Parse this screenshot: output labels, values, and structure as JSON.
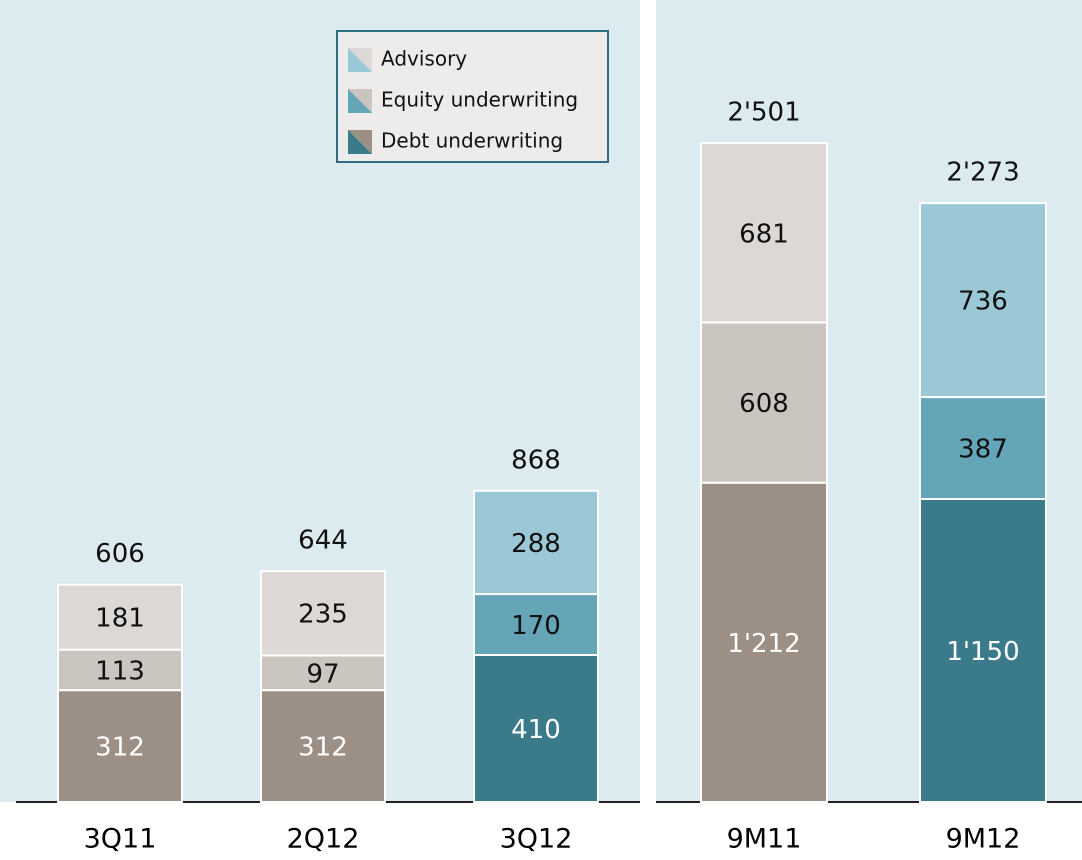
{
  "chart_data": [
    {
      "type": "stacked_bar",
      "categories": [
        "3Q11",
        "2Q12",
        "3Q12"
      ],
      "ylim": [
        0,
        2237
      ],
      "current": [
        false,
        false,
        true
      ],
      "legend": "top-right",
      "series": [
        {
          "name": "Debt underwriting",
          "color": "#3b7a8b",
          "prior_color": "#9c8f86",
          "values": [
            312,
            312,
            410
          ]
        },
        {
          "name": "Equity underwriting",
          "color": "#64a6b8",
          "prior_color": "#cbc5c0",
          "values": [
            113,
            97,
            170
          ]
        },
        {
          "name": "Advisory",
          "color": "#9bc8d6",
          "prior_color": "#dcd8d5",
          "values": [
            181,
            235,
            288
          ]
        }
      ],
      "totals": [
        606,
        644,
        868
      ]
    },
    {
      "type": "stacked_bar",
      "categories": [
        "9M11",
        "9M12"
      ],
      "ylim": [
        0,
        3044
      ],
      "current": [
        false,
        true
      ],
      "series": [
        {
          "name": "Debt underwriting",
          "color": "#3b7a8b",
          "prior_color": "#9c8f86",
          "values": [
            1212,
            1150
          ],
          "value_labels": [
            "1'212",
            "1'150"
          ]
        },
        {
          "name": "Equity underwriting",
          "color": "#64a6b8",
          "prior_color": "#cbc5c0",
          "values": [
            608,
            387
          ]
        },
        {
          "name": "Advisory",
          "color": "#9bc8d6",
          "prior_color": "#dcd8d5",
          "values": [
            681,
            736
          ]
        }
      ],
      "totals": [
        2501,
        2273
      ],
      "total_labels": [
        "2'501",
        "2'273"
      ]
    }
  ]
}
